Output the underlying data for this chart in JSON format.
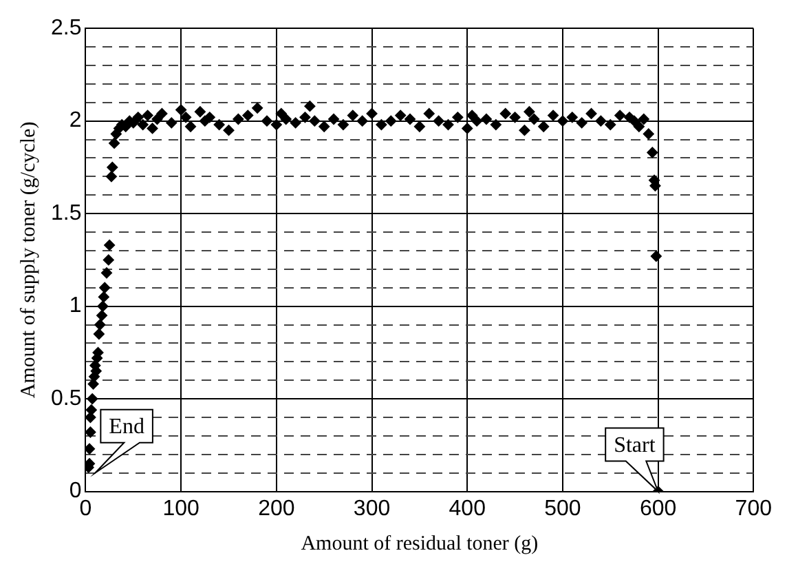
{
  "chart_data": {
    "type": "scatter",
    "xlabel": "Amount of residual toner (g)",
    "ylabel": "Amount of supply toner (g/cycle)",
    "x": [
      3,
      4,
      4,
      5,
      5,
      6,
      7,
      8,
      9,
      10,
      11,
      12,
      13,
      14,
      15,
      17,
      18,
      19,
      20,
      22,
      24,
      25,
      27,
      28,
      30,
      32,
      35,
      38,
      42,
      46,
      50,
      55,
      60,
      65,
      70,
      75,
      80,
      90,
      100,
      105,
      110,
      120,
      125,
      130,
      140,
      150,
      160,
      170,
      180,
      190,
      200,
      205,
      210,
      220,
      230,
      235,
      240,
      250,
      260,
      270,
      280,
      290,
      300,
      310,
      320,
      330,
      340,
      350,
      360,
      370,
      380,
      390,
      400,
      405,
      410,
      420,
      430,
      440,
      450,
      460,
      465,
      470,
      480,
      490,
      500,
      510,
      520,
      530,
      540,
      550,
      560,
      570,
      575,
      580,
      585,
      590,
      594,
      596,
      597,
      598,
      600
    ],
    "values": [
      0.13,
      0.15,
      0.23,
      0.32,
      0.4,
      0.44,
      0.5,
      0.58,
      0.62,
      0.68,
      0.65,
      0.72,
      0.75,
      0.85,
      0.9,
      0.95,
      1.0,
      1.05,
      1.1,
      1.18,
      1.25,
      1.33,
      1.7,
      1.75,
      1.88,
      1.93,
      1.96,
      1.98,
      1.97,
      2.0,
      1.99,
      2.02,
      1.98,
      2.03,
      1.96,
      2.01,
      2.04,
      1.99,
      2.06,
      2.02,
      1.97,
      2.05,
      2.0,
      2.02,
      1.98,
      1.95,
      2.01,
      2.03,
      2.07,
      2.0,
      1.98,
      2.04,
      2.01,
      1.99,
      2.02,
      2.08,
      2.0,
      1.97,
      2.01,
      1.98,
      2.03,
      2.0,
      2.04,
      1.98,
      2.0,
      2.03,
      2.01,
      1.97,
      2.04,
      2.0,
      1.98,
      2.02,
      1.96,
      2.03,
      2.0,
      2.01,
      1.98,
      2.04,
      2.02,
      1.95,
      2.05,
      2.01,
      1.97,
      2.03,
      2.0,
      2.02,
      1.99,
      2.04,
      2.0,
      1.98,
      2.03,
      2.02,
      2.0,
      1.97,
      2.01,
      1.93,
      1.83,
      1.68,
      1.65,
      1.27,
      0
    ],
    "color": "#000000",
    "marker": "diamond",
    "xlim": [
      0,
      700
    ],
    "xticks": [
      0,
      100,
      200,
      300,
      400,
      500,
      600,
      700
    ],
    "ylim": [
      0,
      2.5
    ],
    "yticks": [
      0,
      {
        "value": 0.1,
        "label": null
      },
      {
        "value": 0.2,
        "label": null
      },
      {
        "value": 0.3,
        "label": null
      },
      {
        "value": 0.4,
        "label": null
      },
      0.5,
      {
        "value": 0.6,
        "label": null
      },
      {
        "value": 0.7,
        "label": null
      },
      {
        "value": 0.8,
        "label": null
      },
      {
        "value": 0.9,
        "label": null
      },
      1,
      {
        "value": 1.1,
        "label": null
      },
      {
        "value": 1.2,
        "label": null
      },
      {
        "value": 1.3,
        "label": null
      },
      {
        "value": 1.4,
        "label": null
      },
      1.5,
      {
        "value": 1.6,
        "label": null
      },
      {
        "value": 1.7,
        "label": null
      },
      {
        "value": 1.8,
        "label": null
      },
      {
        "value": 1.9,
        "label": null
      },
      2,
      {
        "value": 2.1,
        "label": null
      },
      {
        "value": 2.2,
        "label": null
      },
      {
        "value": 2.3,
        "label": null
      },
      {
        "value": 2.4,
        "label": null
      },
      2.5
    ],
    "grid": true,
    "legend": false,
    "annotations": [
      {
        "text": "End",
        "x": 10,
        "y": 0.1
      },
      {
        "text": "Start",
        "x": 600,
        "y": 0
      }
    ]
  }
}
